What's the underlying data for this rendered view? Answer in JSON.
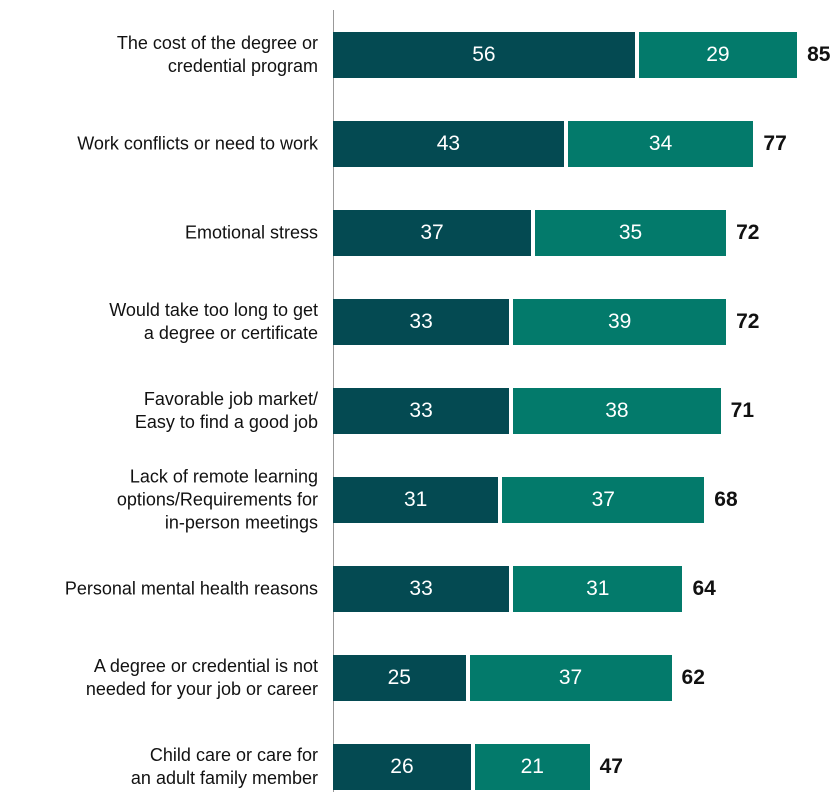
{
  "chart_data": {
    "type": "stacked-bar-horizontal",
    "categories": [
      "The cost of the degree or\ncredential program",
      "Work conflicts or need to work",
      "Emotional stress",
      "Would take too long to get\na degree or certificate",
      "Favorable job market/\nEasy to find a good job",
      "Lack of remote learning\noptions/Requirements for\nin-person meetings",
      "Personal mental health reasons",
      "A degree or credential is not\nneeded for your job or career",
      "Child care or care for\nan adult family member"
    ],
    "series": [
      {
        "color": "#044a52",
        "values": [
          56,
          43,
          37,
          33,
          33,
          31,
          33,
          25,
          26
        ]
      },
      {
        "color": "#037a6b",
        "values": [
          29,
          34,
          35,
          39,
          38,
          37,
          31,
          37,
          21
        ]
      }
    ],
    "totals": [
      85,
      77,
      72,
      72,
      71,
      68,
      64,
      62,
      47
    ]
  }
}
